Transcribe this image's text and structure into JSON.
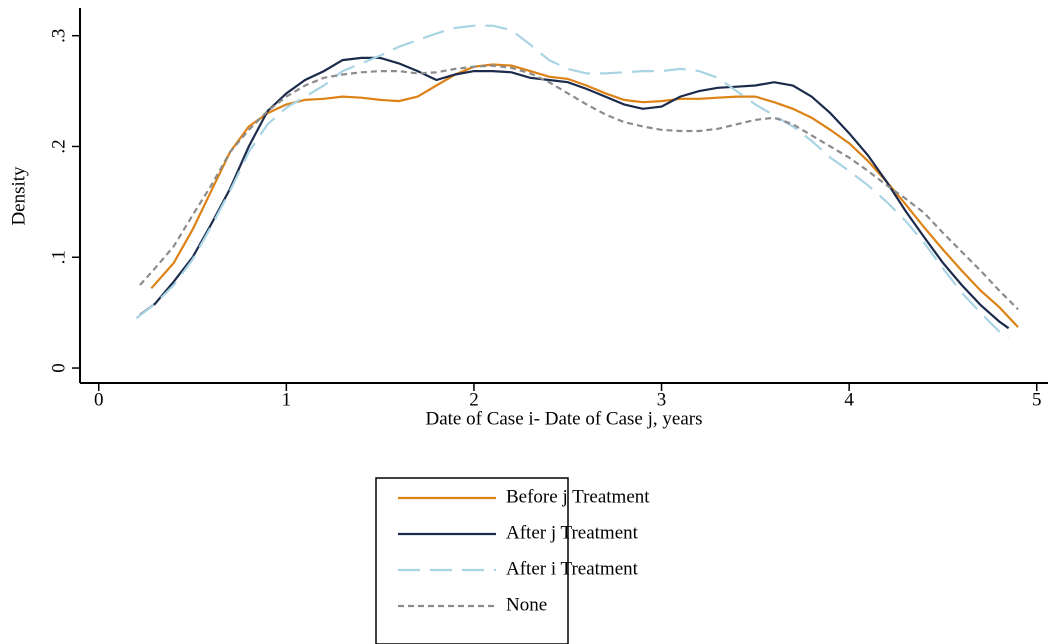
{
  "chart_data": {
    "type": "line",
    "xlabel": "Date of Case i- Date of Case j, years",
    "ylabel": "Density",
    "xlim": [
      -0.1,
      5.06
    ],
    "ylim": [
      -0.0135,
      0.325
    ],
    "xticks": [
      0,
      1,
      2,
      3,
      4,
      5
    ],
    "yticks": [
      0,
      {
        "value": 0.1,
        "label": ".1"
      },
      {
        "value": 0.2,
        "label": ".2"
      },
      {
        "value": 0.3,
        "label": ".3"
      }
    ],
    "legend": "bottom",
    "series": [
      {
        "name": "Before j Treatment",
        "color": "#dd8216",
        "linestyle": "solid",
        "x": [
          0.28,
          0.4,
          0.5,
          0.6,
          0.7,
          0.8,
          0.9,
          1.0,
          1.1,
          1.2,
          1.3,
          1.4,
          1.5,
          1.6,
          1.7,
          1.8,
          1.9,
          2.0,
          2.1,
          2.2,
          2.3,
          2.4,
          2.5,
          2.6,
          2.7,
          2.8,
          2.9,
          3.0,
          3.1,
          3.2,
          3.3,
          3.4,
          3.5,
          3.6,
          3.7,
          3.8,
          3.9,
          4.0,
          4.1,
          4.2,
          4.3,
          4.4,
          4.5,
          4.6,
          4.7,
          4.8,
          4.9
        ],
        "values": [
          0.072,
          0.095,
          0.125,
          0.16,
          0.195,
          0.218,
          0.23,
          0.238,
          0.242,
          0.243,
          0.245,
          0.244,
          0.242,
          0.241,
          0.245,
          0.255,
          0.265,
          0.272,
          0.274,
          0.273,
          0.268,
          0.263,
          0.261,
          0.255,
          0.248,
          0.242,
          0.24,
          0.241,
          0.243,
          0.243,
          0.244,
          0.245,
          0.245,
          0.24,
          0.234,
          0.226,
          0.215,
          0.203,
          0.187,
          0.168,
          0.148,
          0.127,
          0.107,
          0.088,
          0.07,
          0.055,
          0.037
        ]
      },
      {
        "name": "After j Treatment",
        "color": "#1c2b4b",
        "linestyle": "solid",
        "x": [
          0.22,
          0.3,
          0.4,
          0.5,
          0.6,
          0.7,
          0.8,
          0.9,
          1.0,
          1.1,
          1.2,
          1.3,
          1.4,
          1.5,
          1.6,
          1.7,
          1.8,
          1.9,
          2.0,
          2.1,
          2.2,
          2.3,
          2.4,
          2.5,
          2.6,
          2.7,
          2.8,
          2.9,
          3.0,
          3.1,
          3.2,
          3.3,
          3.4,
          3.5,
          3.6,
          3.7,
          3.8,
          3.9,
          4.0,
          4.1,
          4.2,
          4.3,
          4.4,
          4.5,
          4.6,
          4.7,
          4.8,
          4.85
        ],
        "values": [
          0.048,
          0.058,
          0.078,
          0.1,
          0.13,
          0.162,
          0.2,
          0.232,
          0.248,
          0.26,
          0.268,
          0.278,
          0.28,
          0.28,
          0.275,
          0.268,
          0.26,
          0.265,
          0.268,
          0.268,
          0.267,
          0.262,
          0.26,
          0.258,
          0.252,
          0.245,
          0.238,
          0.234,
          0.236,
          0.245,
          0.25,
          0.253,
          0.254,
          0.255,
          0.258,
          0.255,
          0.245,
          0.23,
          0.212,
          0.192,
          0.168,
          0.142,
          0.118,
          0.095,
          0.075,
          0.057,
          0.042,
          0.036
        ]
      },
      {
        "name": "After i Treatment",
        "color": "#a9d4e3",
        "linestyle": "long",
        "x": [
          0.2,
          0.3,
          0.4,
          0.5,
          0.6,
          0.7,
          0.8,
          0.9,
          1.0,
          1.1,
          1.2,
          1.3,
          1.4,
          1.5,
          1.6,
          1.7,
          1.8,
          1.9,
          2.0,
          2.1,
          2.2,
          2.3,
          2.4,
          2.5,
          2.6,
          2.7,
          2.8,
          2.9,
          3.0,
          3.1,
          3.2,
          3.3,
          3.4,
          3.5,
          3.6,
          3.7,
          3.8,
          3.9,
          4.0,
          4.1,
          4.2,
          4.3,
          4.4,
          4.5,
          4.6,
          4.7,
          4.8,
          4.85
        ],
        "values": [
          0.045,
          0.058,
          0.075,
          0.098,
          0.128,
          0.16,
          0.195,
          0.22,
          0.235,
          0.245,
          0.255,
          0.268,
          0.275,
          0.282,
          0.29,
          0.296,
          0.302,
          0.307,
          0.309,
          0.309,
          0.305,
          0.292,
          0.278,
          0.27,
          0.266,
          0.266,
          0.267,
          0.268,
          0.268,
          0.27,
          0.268,
          0.262,
          0.25,
          0.238,
          0.228,
          0.218,
          0.205,
          0.19,
          0.178,
          0.165,
          0.15,
          0.133,
          0.113,
          0.09,
          0.068,
          0.05,
          0.033,
          0.028
        ]
      },
      {
        "name": "None",
        "color": "#8c8c8c",
        "linestyle": "short",
        "x": [
          0.22,
          0.3,
          0.4,
          0.5,
          0.6,
          0.7,
          0.8,
          0.9,
          1.0,
          1.1,
          1.2,
          1.3,
          1.4,
          1.5,
          1.6,
          1.7,
          1.8,
          1.9,
          2.0,
          2.1,
          2.2,
          2.3,
          2.4,
          2.5,
          2.6,
          2.7,
          2.8,
          2.9,
          3.0,
          3.1,
          3.2,
          3.3,
          3.4,
          3.5,
          3.6,
          3.7,
          3.8,
          3.9,
          4.0,
          4.1,
          4.2,
          4.3,
          4.4,
          4.5,
          4.6,
          4.7,
          4.8,
          4.9
        ],
        "values": [
          0.075,
          0.09,
          0.11,
          0.138,
          0.165,
          0.195,
          0.215,
          0.232,
          0.245,
          0.255,
          0.262,
          0.265,
          0.267,
          0.268,
          0.268,
          0.266,
          0.267,
          0.27,
          0.272,
          0.273,
          0.271,
          0.266,
          0.258,
          0.248,
          0.238,
          0.229,
          0.222,
          0.218,
          0.215,
          0.214,
          0.214,
          0.216,
          0.22,
          0.224,
          0.226,
          0.22,
          0.21,
          0.2,
          0.19,
          0.178,
          0.165,
          0.153,
          0.14,
          0.122,
          0.105,
          0.088,
          0.07,
          0.053
        ]
      }
    ]
  }
}
